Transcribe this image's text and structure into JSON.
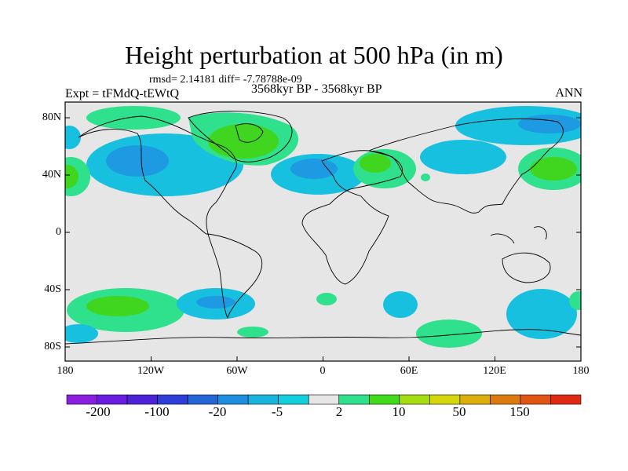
{
  "title": "Height perturbation at 500 hPa (in m)",
  "stats_text": "rmsd= 2.14181  diff= -7.78788e-09",
  "experiment": "Expt = tFMdQ-tEWtQ",
  "period": "3568kyr BP - 3568kyr BP",
  "season": "ANN",
  "lat_labels": [
    "80N",
    "40N",
    "0",
    "40S",
    "80S"
  ],
  "lon_labels": [
    "180",
    "120W",
    "60W",
    "0",
    "60E",
    "120E",
    "180"
  ],
  "colorbar": {
    "labels": [
      "-200",
      "-100",
      "-20",
      "-5",
      "2",
      "10",
      "50",
      "150"
    ],
    "colors": [
      "#8a1fe0",
      "#6a1ce0",
      "#4b22d6",
      "#2e3ed6",
      "#2466d8",
      "#1e8fe0",
      "#18b4e0",
      "#12cfdc",
      "#e6e6e6",
      "#2fe08c",
      "#40dc1c",
      "#a6dc12",
      "#d6d60c",
      "#dcb00c",
      "#dc7a10",
      "#e05414",
      "#e02812"
    ]
  },
  "colors": {
    "land_background": "#e6e6e6",
    "negative_weak": "#18c0e0",
    "negative_mid": "#1e9ae2",
    "positive_weak": "#2fe08c",
    "positive_mid": "#40d620"
  }
}
